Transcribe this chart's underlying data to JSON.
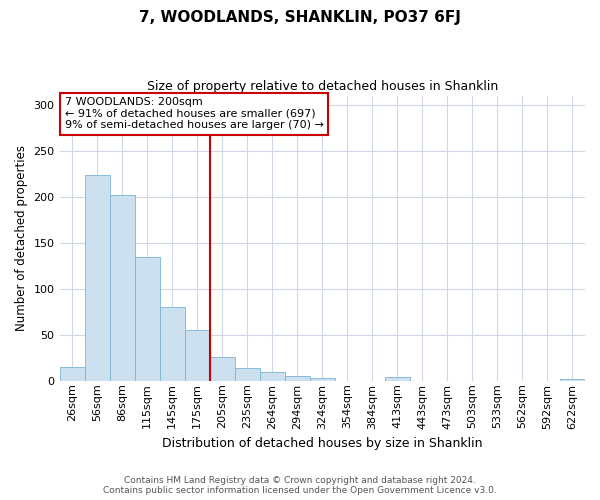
{
  "title": "7, WOODLANDS, SHANKLIN, PO37 6FJ",
  "subtitle": "Size of property relative to detached houses in Shanklin",
  "xlabel": "Distribution of detached houses by size in Shanklin",
  "ylabel": "Number of detached properties",
  "bar_color": "#cce0f0",
  "bar_edgecolor": "#7ab3d4",
  "vline_color": "#cc0000",
  "annotation_title": "7 WOODLANDS: 200sqm",
  "annotation_line1": "← 91% of detached houses are smaller (697)",
  "annotation_line2": "9% of semi-detached houses are larger (70) →",
  "annotation_box_edgecolor": "#cc0000",
  "footer_line1": "Contains HM Land Registry data © Crown copyright and database right 2024.",
  "footer_line2": "Contains public sector information licensed under the Open Government Licence v3.0.",
  "categories": [
    "26sqm",
    "56sqm",
    "86sqm",
    "115sqm",
    "145sqm",
    "175sqm",
    "205sqm",
    "235sqm",
    "264sqm",
    "294sqm",
    "324sqm",
    "354sqm",
    "384sqm",
    "413sqm",
    "443sqm",
    "473sqm",
    "503sqm",
    "533sqm",
    "562sqm",
    "592sqm",
    "622sqm"
  ],
  "values": [
    15,
    224,
    202,
    135,
    80,
    55,
    26,
    14,
    10,
    5,
    3,
    0,
    0,
    4,
    0,
    0,
    0,
    0,
    0,
    0,
    2
  ],
  "ylim": [
    0,
    310
  ],
  "yticks": [
    0,
    50,
    100,
    150,
    200,
    250,
    300
  ],
  "vline_after_index": 5,
  "background_color": "#ffffff",
  "grid_color": "#d0d8e8",
  "title_fontsize": 11,
  "subtitle_fontsize": 9,
  "ylabel_fontsize": 8.5,
  "xlabel_fontsize": 9,
  "tick_fontsize": 8,
  "annotation_fontsize": 8,
  "footer_fontsize": 6.5
}
